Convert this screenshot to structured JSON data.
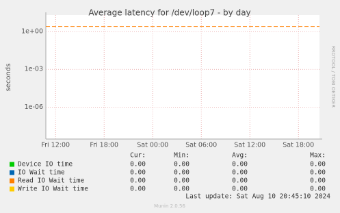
{
  "chart_data": {
    "type": "line",
    "title": "Average latency for /dev/loop7 - by day",
    "y_label": "seconds",
    "side_text": "RRDTOOL / TOBI OETIKER",
    "log_y": true,
    "grid": true,
    "ylim": [
      3e-09,
      20
    ],
    "yticks": [
      {
        "value": 1,
        "label": "1e+00"
      },
      {
        "value": 0.001,
        "label": "1e-03"
      },
      {
        "value": 1e-06,
        "label": "1e-06"
      }
    ],
    "xlim": [
      10.8,
      44.6
    ],
    "xticks": [
      {
        "value": 12,
        "label": "Fri 12:00"
      },
      {
        "value": 18,
        "label": "Fri 18:00"
      },
      {
        "value": 24,
        "label": "Sat 00:00"
      },
      {
        "value": 30,
        "label": "Sat 06:00"
      },
      {
        "value": 36,
        "label": "Sat 12:00"
      },
      {
        "value": 42,
        "label": "Sat 18:00"
      }
    ],
    "threshold": {
      "value": 2.5,
      "color": "#ff8000"
    },
    "legend": {
      "columns": [
        "Cur:",
        "Min:",
        "Avg:",
        "Max:"
      ],
      "rows": [
        {
          "name": "Device IO time",
          "color": "#00cc00",
          "values": [
            "0.00",
            "0.00",
            "0.00",
            "0.00"
          ]
        },
        {
          "name": "IO Wait time",
          "color": "#0066b3",
          "values": [
            "0.00",
            "0.00",
            "0.00",
            "0.00"
          ]
        },
        {
          "name": "Read IO Wait time",
          "color": "#ff8000",
          "values": [
            "0.00",
            "0.00",
            "0.00",
            "0.00"
          ]
        },
        {
          "name": "Write IO Wait time",
          "color": "#ffcc00",
          "values": [
            "0.00",
            "0.00",
            "0.00",
            "0.00"
          ]
        }
      ]
    },
    "last_update": "Last update: Sat Aug 10 20:45:10 2024",
    "footer": "Munin 2.0.56"
  }
}
